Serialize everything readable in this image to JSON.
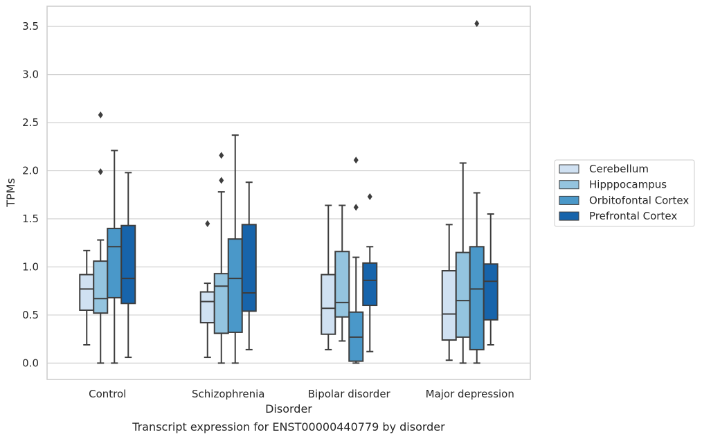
{
  "chart_data": {
    "type": "box",
    "caption": "Transcript expression for ENST00000440779 by disorder",
    "xlabel": "Disorder",
    "ylabel": "TPMs",
    "ylim": [
      -0.17,
      3.71
    ],
    "yticks": [
      0.0,
      0.5,
      1.0,
      1.5,
      2.0,
      2.5,
      3.0,
      3.5
    ],
    "ytick_labels": [
      "0.0",
      "0.5",
      "1.0",
      "1.5",
      "2.0",
      "2.5",
      "3.0",
      "3.5"
    ],
    "categories": [
      "Control",
      "Schizophrenia",
      "Bipolar disorder",
      "Major depression"
    ],
    "grid": "horizontal",
    "legend_placement": "right",
    "series": [
      {
        "name": "Cerebellum",
        "color": "#d0e1f2",
        "boxes": [
          {
            "whislo": 0.19,
            "q1": 0.55,
            "med": 0.77,
            "q3": 0.92,
            "whishi": 1.17,
            "fliers": []
          },
          {
            "whislo": 0.06,
            "q1": 0.42,
            "med": 0.64,
            "q3": 0.74,
            "whishi": 0.83,
            "fliers": [
              1.45
            ]
          },
          {
            "whislo": 0.14,
            "q1": 0.3,
            "med": 0.57,
            "q3": 0.92,
            "whishi": 1.64,
            "fliers": []
          },
          {
            "whislo": 0.03,
            "q1": 0.24,
            "med": 0.51,
            "q3": 0.96,
            "whishi": 1.44,
            "fliers": []
          }
        ]
      },
      {
        "name": "Hipppocampus",
        "color": "#94c4df",
        "boxes": [
          {
            "whislo": 0.0,
            "q1": 0.52,
            "med": 0.67,
            "q3": 1.06,
            "whishi": 1.28,
            "fliers": [
              1.99,
              2.58
            ]
          },
          {
            "whislo": 0.0,
            "q1": 0.31,
            "med": 0.8,
            "q3": 0.93,
            "whishi": 1.78,
            "fliers": [
              1.9,
              2.16
            ]
          },
          {
            "whislo": 0.23,
            "q1": 0.48,
            "med": 0.63,
            "q3": 1.16,
            "whishi": 1.64,
            "fliers": []
          },
          {
            "whislo": 0.0,
            "q1": 0.27,
            "med": 0.65,
            "q3": 1.15,
            "whishi": 2.08,
            "fliers": []
          }
        ]
      },
      {
        "name": "Orbitofontal Cortex",
        "color": "#4a98c9",
        "boxes": [
          {
            "whislo": 0.0,
            "q1": 0.68,
            "med": 1.21,
            "q3": 1.4,
            "whishi": 2.21,
            "fliers": []
          },
          {
            "whislo": 0.0,
            "q1": 0.32,
            "med": 0.88,
            "q3": 1.29,
            "whishi": 2.37,
            "fliers": []
          },
          {
            "whislo": 0.0,
            "q1": 0.02,
            "med": 0.27,
            "q3": 0.53,
            "whishi": 1.1,
            "fliers": [
              1.62,
              2.11
            ]
          },
          {
            "whislo": 0.0,
            "q1": 0.14,
            "med": 0.77,
            "q3": 1.21,
            "whishi": 1.77,
            "fliers": [
              3.53
            ]
          }
        ]
      },
      {
        "name": "Prefrontal Cortex",
        "color": "#1764ab",
        "boxes": [
          {
            "whislo": 0.06,
            "q1": 0.62,
            "med": 0.88,
            "q3": 1.43,
            "whishi": 1.98,
            "fliers": []
          },
          {
            "whislo": 0.14,
            "q1": 0.54,
            "med": 0.73,
            "q3": 1.44,
            "whishi": 1.88,
            "fliers": []
          },
          {
            "whislo": 0.12,
            "q1": 0.6,
            "med": 0.86,
            "q3": 1.04,
            "whishi": 1.21,
            "fliers": [
              1.73
            ]
          },
          {
            "whislo": 0.19,
            "q1": 0.45,
            "med": 0.85,
            "q3": 1.03,
            "whishi": 1.55,
            "fliers": []
          }
        ]
      }
    ]
  }
}
